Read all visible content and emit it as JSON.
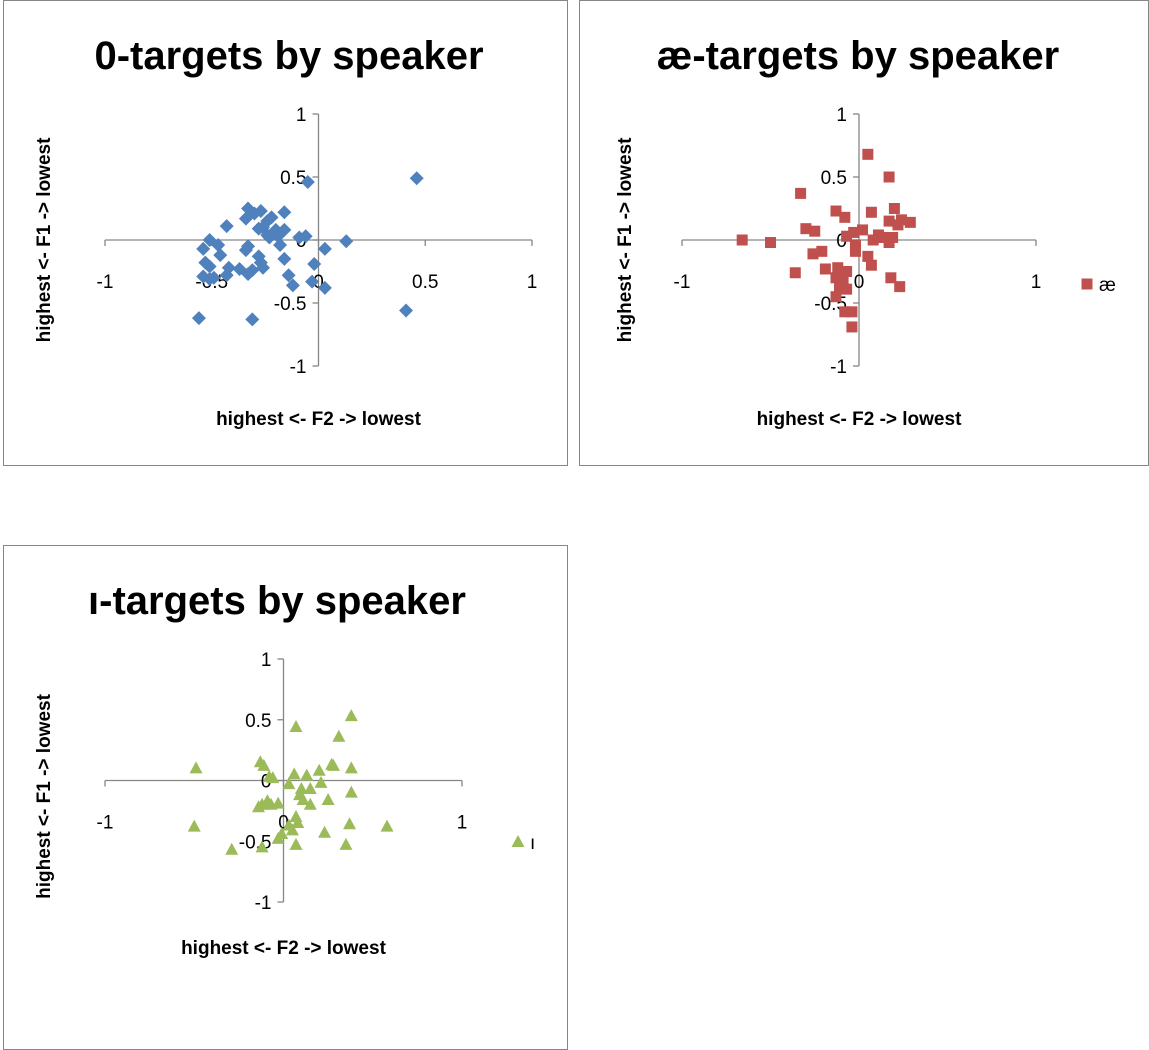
{
  "chart_data": [
    {
      "type": "scatter",
      "title": "0-targets by speaker",
      "xlabel": "highest <- F2 -> lowest",
      "ylabel": "highest <- F1 -> lowest",
      "xlim": [
        -1,
        1
      ],
      "ylim": [
        -1,
        1
      ],
      "x_ticks": [
        "-1",
        "-0.5",
        "0",
        "0.5",
        "1"
      ],
      "y_ticks": [
        "1",
        "0.5",
        "0",
        "-0.5",
        "-1"
      ],
      "legend": null,
      "series": [
        {
          "marker": "diamond",
          "color": "#4f81bd",
          "points": [
            [
              -0.43,
              0.11
            ],
            [
              -0.51,
              0.0
            ],
            [
              -0.54,
              -0.07
            ],
            [
              -0.47,
              -0.04
            ],
            [
              -0.46,
              -0.12
            ],
            [
              -0.51,
              -0.21
            ],
            [
              -0.53,
              -0.18
            ],
            [
              -0.42,
              -0.22
            ],
            [
              -0.43,
              -0.28
            ],
            [
              -0.49,
              -0.3
            ],
            [
              -0.54,
              -0.29
            ],
            [
              -0.51,
              -0.31
            ],
            [
              -0.56,
              -0.62
            ],
            [
              -0.37,
              -0.23
            ],
            [
              -0.33,
              -0.27
            ],
            [
              -0.31,
              -0.24
            ],
            [
              -0.34,
              -0.08
            ],
            [
              -0.33,
              -0.05
            ],
            [
              -0.28,
              -0.13
            ],
            [
              -0.27,
              -0.18
            ],
            [
              -0.26,
              -0.22
            ],
            [
              -0.28,
              0.09
            ],
            [
              -0.26,
              0.1
            ],
            [
              -0.24,
              0.15
            ],
            [
              -0.22,
              0.18
            ],
            [
              -0.34,
              0.17
            ],
            [
              -0.3,
              0.21
            ],
            [
              -0.33,
              0.25
            ],
            [
              -0.27,
              0.23
            ],
            [
              -0.23,
              0.02
            ],
            [
              -0.24,
              0.04
            ],
            [
              -0.2,
              0.08
            ],
            [
              -0.16,
              0.08
            ],
            [
              -0.18,
              -0.04
            ],
            [
              -0.19,
              0.03
            ],
            [
              -0.09,
              0.02
            ],
            [
              -0.06,
              0.03
            ],
            [
              -0.16,
              0.22
            ],
            [
              -0.05,
              0.46
            ],
            [
              -0.16,
              -0.15
            ],
            [
              -0.14,
              -0.28
            ],
            [
              -0.12,
              -0.36
            ],
            [
              -0.03,
              -0.33
            ],
            [
              -0.02,
              -0.19
            ],
            [
              0.03,
              -0.07
            ],
            [
              0.03,
              -0.38
            ],
            [
              0.13,
              -0.01
            ],
            [
              -0.31,
              -0.63
            ],
            [
              0.46,
              0.49
            ],
            [
              0.41,
              -0.56
            ]
          ]
        }
      ]
    },
    {
      "type": "scatter",
      "title": "æ-targets by speaker",
      "xlabel": "highest <- F2 -> lowest",
      "ylabel": "highest <- F1 -> lowest",
      "xlim": [
        -1,
        1
      ],
      "ylim": [
        -1,
        1
      ],
      "x_ticks": [
        "-1",
        "0",
        "1"
      ],
      "y_ticks": [
        "1",
        "0.5",
        "0",
        "-0.5",
        "-1"
      ],
      "legend": "right",
      "series": [
        {
          "name": "æ",
          "marker": "square",
          "color": "#c0504d",
          "points": [
            [
              0.05,
              0.68
            ],
            [
              0.17,
              0.5
            ],
            [
              -0.33,
              0.37
            ],
            [
              -0.13,
              0.23
            ],
            [
              -0.08,
              0.18
            ],
            [
              0.07,
              0.22
            ],
            [
              0.2,
              0.25
            ],
            [
              0.24,
              0.16
            ],
            [
              0.29,
              0.14
            ],
            [
              0.17,
              0.15
            ],
            [
              0.22,
              0.12
            ],
            [
              -0.3,
              0.09
            ],
            [
              -0.25,
              0.07
            ],
            [
              -0.03,
              0.06
            ],
            [
              0.02,
              0.08
            ],
            [
              -0.07,
              0.03
            ],
            [
              0.11,
              0.04
            ],
            [
              0.14,
              0.02
            ],
            [
              0.19,
              0.02
            ],
            [
              0.08,
              0.0
            ],
            [
              -0.66,
              0.0
            ],
            [
              -0.5,
              -0.02
            ],
            [
              -0.02,
              -0.04
            ],
            [
              0.17,
              -0.02
            ],
            [
              -0.26,
              -0.11
            ],
            [
              -0.21,
              -0.09
            ],
            [
              -0.02,
              -0.09
            ],
            [
              0.05,
              -0.13
            ],
            [
              -0.36,
              -0.26
            ],
            [
              -0.19,
              -0.23
            ],
            [
              -0.12,
              -0.22
            ],
            [
              -0.07,
              -0.25
            ],
            [
              -0.13,
              -0.3
            ],
            [
              -0.09,
              -0.31
            ],
            [
              0.07,
              -0.2
            ],
            [
              0.18,
              -0.3
            ],
            [
              0.23,
              -0.37
            ],
            [
              -0.07,
              -0.39
            ],
            [
              -0.11,
              -0.37
            ],
            [
              -0.13,
              -0.45
            ],
            [
              -0.04,
              -0.57
            ],
            [
              -0.08,
              -0.57
            ],
            [
              -0.04,
              -0.69
            ]
          ]
        }
      ]
    },
    {
      "type": "scatter",
      "title": "ı-targets by speaker",
      "xlabel": "highest <- F2 -> lowest",
      "ylabel": "highest <- F1 -> lowest",
      "xlim": [
        -1,
        1
      ],
      "ylim": [
        -1,
        1
      ],
      "x_ticks": [
        "-1",
        "0",
        "1"
      ],
      "y_ticks": [
        "1",
        "0.5",
        "0",
        "-0.5",
        "-1"
      ],
      "legend": "right",
      "series": [
        {
          "name": "ı",
          "marker": "triangle",
          "color": "#9bbb59",
          "points": [
            [
              0.38,
              0.53
            ],
            [
              0.07,
              0.44
            ],
            [
              0.31,
              0.36
            ],
            [
              -0.49,
              0.1
            ],
            [
              -0.13,
              0.15
            ],
            [
              -0.11,
              0.12
            ],
            [
              0.27,
              0.13
            ],
            [
              0.28,
              0.12
            ],
            [
              0.38,
              0.1
            ],
            [
              0.2,
              0.08
            ],
            [
              -0.08,
              0.03
            ],
            [
              0.03,
              -0.03
            ],
            [
              0.06,
              0.05
            ],
            [
              0.13,
              0.04
            ],
            [
              0.15,
              -0.07
            ],
            [
              0.21,
              -0.02
            ],
            [
              0.1,
              -0.07
            ],
            [
              -0.06,
              0.02
            ],
            [
              0.09,
              -0.12
            ],
            [
              0.11,
              -0.16
            ],
            [
              0.25,
              -0.16
            ],
            [
              0.38,
              -0.1
            ],
            [
              0.15,
              -0.2
            ],
            [
              -0.14,
              -0.22
            ],
            [
              -0.12,
              -0.2
            ],
            [
              -0.09,
              -0.17
            ],
            [
              -0.03,
              -0.19
            ],
            [
              -0.07,
              -0.2
            ],
            [
              0.07,
              -0.3
            ],
            [
              0.08,
              -0.35
            ],
            [
              0.03,
              -0.37
            ],
            [
              0.37,
              -0.36
            ],
            [
              0.58,
              -0.38
            ],
            [
              -0.01,
              -0.44
            ],
            [
              0.05,
              -0.41
            ],
            [
              0.23,
              -0.43
            ],
            [
              -0.12,
              -0.55
            ],
            [
              0.07,
              -0.53
            ],
            [
              -0.03,
              -0.48
            ],
            [
              0.35,
              -0.53
            ],
            [
              -0.29,
              -0.57
            ],
            [
              -0.5,
              -0.38
            ]
          ]
        }
      ]
    }
  ]
}
